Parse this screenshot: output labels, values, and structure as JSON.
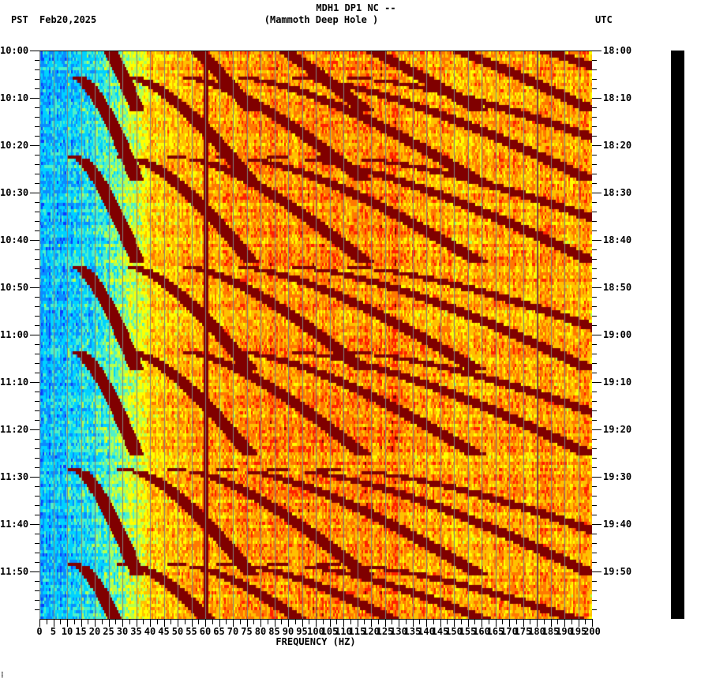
{
  "header": {
    "title_line1": "MDH1 DP1 NC --",
    "title_line2": "(Mammoth Deep Hole )",
    "tz_left": "PST",
    "date": "Feb20,2025",
    "tz_right": "UTC"
  },
  "footer_mark": "⸽",
  "colors": {
    "colormap": [
      "#0a3cff",
      "#0a8cff",
      "#00d2ff",
      "#4ff0c8",
      "#b4ff50",
      "#ffff00",
      "#ffc000",
      "#ff7800",
      "#ff2000",
      "#800000"
    ],
    "gridline": "#808080",
    "background": "#ffffff",
    "axis": "#000000"
  },
  "chart_data": {
    "type": "heatmap",
    "title": "MDH1 DP1 NC -- (Mammoth Deep Hole )",
    "subtitle": "Feb20,2025",
    "xlabel": "FREQUENCY (HZ)",
    "ylabel_left": "PST",
    "ylabel_right": "UTC",
    "xlim": [
      0,
      200
    ],
    "x_ticks": [
      0,
      5,
      10,
      15,
      20,
      25,
      30,
      35,
      40,
      45,
      50,
      55,
      60,
      65,
      70,
      75,
      80,
      85,
      90,
      95,
      100,
      105,
      110,
      115,
      120,
      125,
      130,
      135,
      140,
      145,
      150,
      155,
      160,
      165,
      170,
      175,
      180,
      185,
      190,
      195,
      200
    ],
    "y_ticks_left": [
      "10:00",
      "10:10",
      "10:20",
      "10:30",
      "10:40",
      "10:50",
      "11:00",
      "11:10",
      "11:20",
      "11:30",
      "11:40",
      "11:50"
    ],
    "y_ticks_right": [
      "18:00",
      "18:10",
      "18:20",
      "18:30",
      "18:40",
      "18:50",
      "19:00",
      "19:10",
      "19:20",
      "19:30",
      "19:40",
      "19:50"
    ],
    "time_range_pst": [
      "10:00",
      "12:00"
    ],
    "minor_tick_minutes": 2,
    "grid": "vertical lines every 5 Hz",
    "features": {
      "background_low_freq_hz": [
        0,
        30
      ],
      "background_low_color": "blue/cyan",
      "background_high_color": "yellow/orange/red",
      "persistent_line_hz": 60,
      "secondary_line_hz": 180,
      "gliding_harmonic_cycles_start_min": [
        -10,
        5,
        22,
        45,
        63,
        88,
        108
      ],
      "glide_direction": "frequency increases with time (curved tracks)"
    }
  }
}
